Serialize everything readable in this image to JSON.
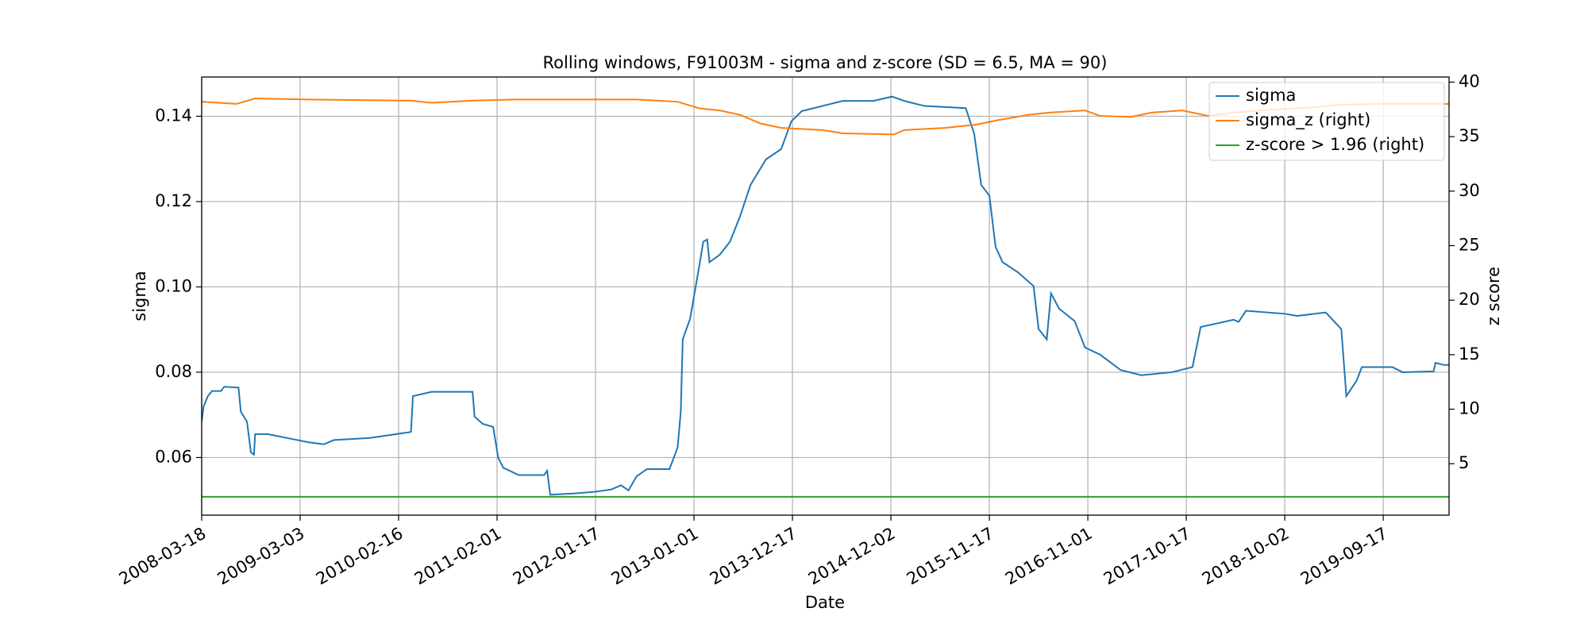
{
  "chart_data": {
    "type": "line",
    "title": "Rolling windows, F91003M - sigma and z-score (SD = 6.5, MA = 90)",
    "xlabel": "Date",
    "ylabel": "sigma",
    "y2label": "z score",
    "xlim": [
      "2008-03-18",
      "2020-05-08"
    ],
    "xticks": [
      "2008-03-18",
      "2009-03-03",
      "2010-02-16",
      "2011-02-01",
      "2012-01-17",
      "2013-01-01",
      "2013-12-17",
      "2014-12-02",
      "2015-11-17",
      "2016-11-01",
      "2017-10-17",
      "2018-10-02",
      "2019-09-17"
    ],
    "ylim": [
      0.0465,
      0.1492
    ],
    "yticks": [
      0.06,
      0.08,
      {
        "value": 0.1,
        "label": "0.10"
      },
      0.12,
      0.14
    ],
    "y2lim": [
      0.28,
      40.47
    ],
    "y2ticks": [
      5,
      10,
      15,
      20,
      25,
      30,
      35,
      40
    ],
    "grid": true,
    "legend": "upper right",
    "series": [
      {
        "name": "sigma",
        "color": "#1f77b4",
        "x": [
          "2008-03-18",
          "2008-03-25",
          "2008-04-09",
          "2008-04-24",
          "2008-05-26",
          "2008-06-06",
          "2008-07-27",
          "2008-08-04",
          "2008-08-26",
          "2008-09-09",
          "2008-09-20",
          "2008-09-24",
          "2008-11-07",
          "2009-02-06",
          "2009-04-01",
          "2009-05-26",
          "2009-07-01",
          "2009-11-06",
          "2010-04-01",
          "2010-04-08",
          "2010-06-13",
          "2010-11-06",
          "2010-11-13",
          "2010-12-12",
          "2011-01-18",
          "2011-02-05",
          "2011-02-23",
          "2011-04-19",
          "2011-07-18",
          "2011-07-29",
          "2011-08-09",
          "2011-11-04",
          "2012-01-17",
          "2012-03-12",
          "2012-04-17",
          "2012-05-13",
          "2012-06-11",
          "2012-07-18",
          "2012-10-06",
          "2012-11-04",
          "2012-11-15",
          "2012-11-22",
          "2012-12-18",
          "2013-01-19",
          "2013-02-03",
          "2013-02-17",
          "2013-02-25",
          "2013-04-02",
          "2013-05-09",
          "2013-06-14",
          "2013-07-21",
          "2013-09-14",
          "2013-11-07",
          "2013-12-13",
          "2014-01-19",
          "2014-04-02",
          "2014-06-14",
          "2014-10-01",
          "2014-12-06",
          "2015-01-18",
          "2015-04-01",
          "2015-08-25",
          "2015-09-24",
          "2015-10-19",
          "2015-11-17",
          "2015-12-09",
          "2016-01-03",
          "2016-02-27",
          "2016-04-22",
          "2016-05-10",
          "2016-06-08",
          "2016-06-23",
          "2016-07-22",
          "2016-09-15",
          "2016-10-22",
          "2016-12-15",
          "2017-02-26",
          "2017-05-10",
          "2017-08-27",
          "2017-11-08",
          "2017-12-07",
          "2018-04-03",
          "2018-04-21",
          "2018-05-17",
          "2018-10-02",
          "2018-11-15",
          "2019-02-25",
          "2019-04-21",
          "2019-05-09",
          "2019-06-15",
          "2019-07-03",
          "2019-10-20",
          "2019-11-25",
          "2020-03-14",
          "2020-03-21",
          "2020-04-19",
          "2020-05-08"
        ],
        "values": [
          0.0684,
          0.072,
          0.0744,
          0.0756,
          0.0756,
          0.0766,
          0.0764,
          0.0708,
          0.0684,
          0.0612,
          0.0607,
          0.0655,
          0.0655,
          0.0643,
          0.0636,
          0.0631,
          0.0641,
          0.0646,
          0.066,
          0.0744,
          0.0754,
          0.0754,
          0.0696,
          0.0679,
          0.0672,
          0.06,
          0.0576,
          0.0559,
          0.0559,
          0.0569,
          0.0513,
          0.0516,
          0.052,
          0.0525,
          0.0535,
          0.0523,
          0.0556,
          0.0573,
          0.0573,
          0.0624,
          0.0708,
          0.0877,
          0.0925,
          0.1046,
          0.1106,
          0.1111,
          0.1058,
          0.1075,
          0.1106,
          0.1166,
          0.1239,
          0.1299,
          0.1323,
          0.1388,
          0.1412,
          0.1424,
          0.1436,
          0.1436,
          0.1446,
          0.1436,
          0.1424,
          0.1419,
          0.1359,
          0.1239,
          0.1214,
          0.1094,
          0.1058,
          0.1034,
          0.1002,
          0.0901,
          0.0877,
          0.0985,
          0.0949,
          0.092,
          0.0858,
          0.0841,
          0.0805,
          0.0793,
          0.08,
          0.0812,
          0.0906,
          0.0923,
          0.0918,
          0.0944,
          0.0937,
          0.0932,
          0.094,
          0.0901,
          0.0744,
          0.0781,
          0.0812,
          0.0812,
          0.08,
          0.0802,
          0.0822,
          0.0817,
          0.0817
        ]
      },
      {
        "name": "sigma_z (right)",
        "color": "#ff7f0e",
        "axis": "y2",
        "x": [
          "2008-03-18",
          "2008-07-20",
          "2008-09-24",
          "2009-04-01",
          "2010-04-01",
          "2010-06-13",
          "2010-11-06",
          "2011-03-31",
          "2011-11-04",
          "2012-06-11",
          "2012-11-04",
          "2013-01-19",
          "2013-04-02",
          "2013-06-14",
          "2013-08-26",
          "2013-11-07",
          "2014-04-02",
          "2014-06-14",
          "2014-12-13",
          "2015-01-18",
          "2015-06-13",
          "2015-10-01",
          "2015-12-16",
          "2016-04-04",
          "2016-06-16",
          "2016-10-22",
          "2016-12-15",
          "2017-04-03",
          "2017-06-15",
          "2017-10-03",
          "2018-01-02",
          "2018-04-03",
          "2018-08-27",
          "2019-01-20",
          "2019-04-03",
          "2019-08-27",
          "2020-05-08"
        ],
        "values": [
          38.2,
          38.0,
          38.5,
          38.4,
          38.3,
          38.1,
          38.3,
          38.4,
          38.4,
          38.4,
          38.2,
          37.6,
          37.4,
          37.0,
          36.2,
          35.8,
          35.6,
          35.3,
          35.2,
          35.6,
          35.8,
          36.1,
          36.5,
          37.0,
          37.2,
          37.4,
          36.9,
          36.8,
          37.2,
          37.4,
          36.9,
          37.2,
          37.5,
          37.7,
          37.9,
          38.0,
          38.0
        ]
      },
      {
        "name": "z-score > 1.96 (right)",
        "color": "#2ca02c",
        "axis": "y2",
        "x": [
          "2008-03-18",
          "2020-05-08"
        ],
        "values": [
          1.96,
          1.96
        ]
      }
    ]
  }
}
